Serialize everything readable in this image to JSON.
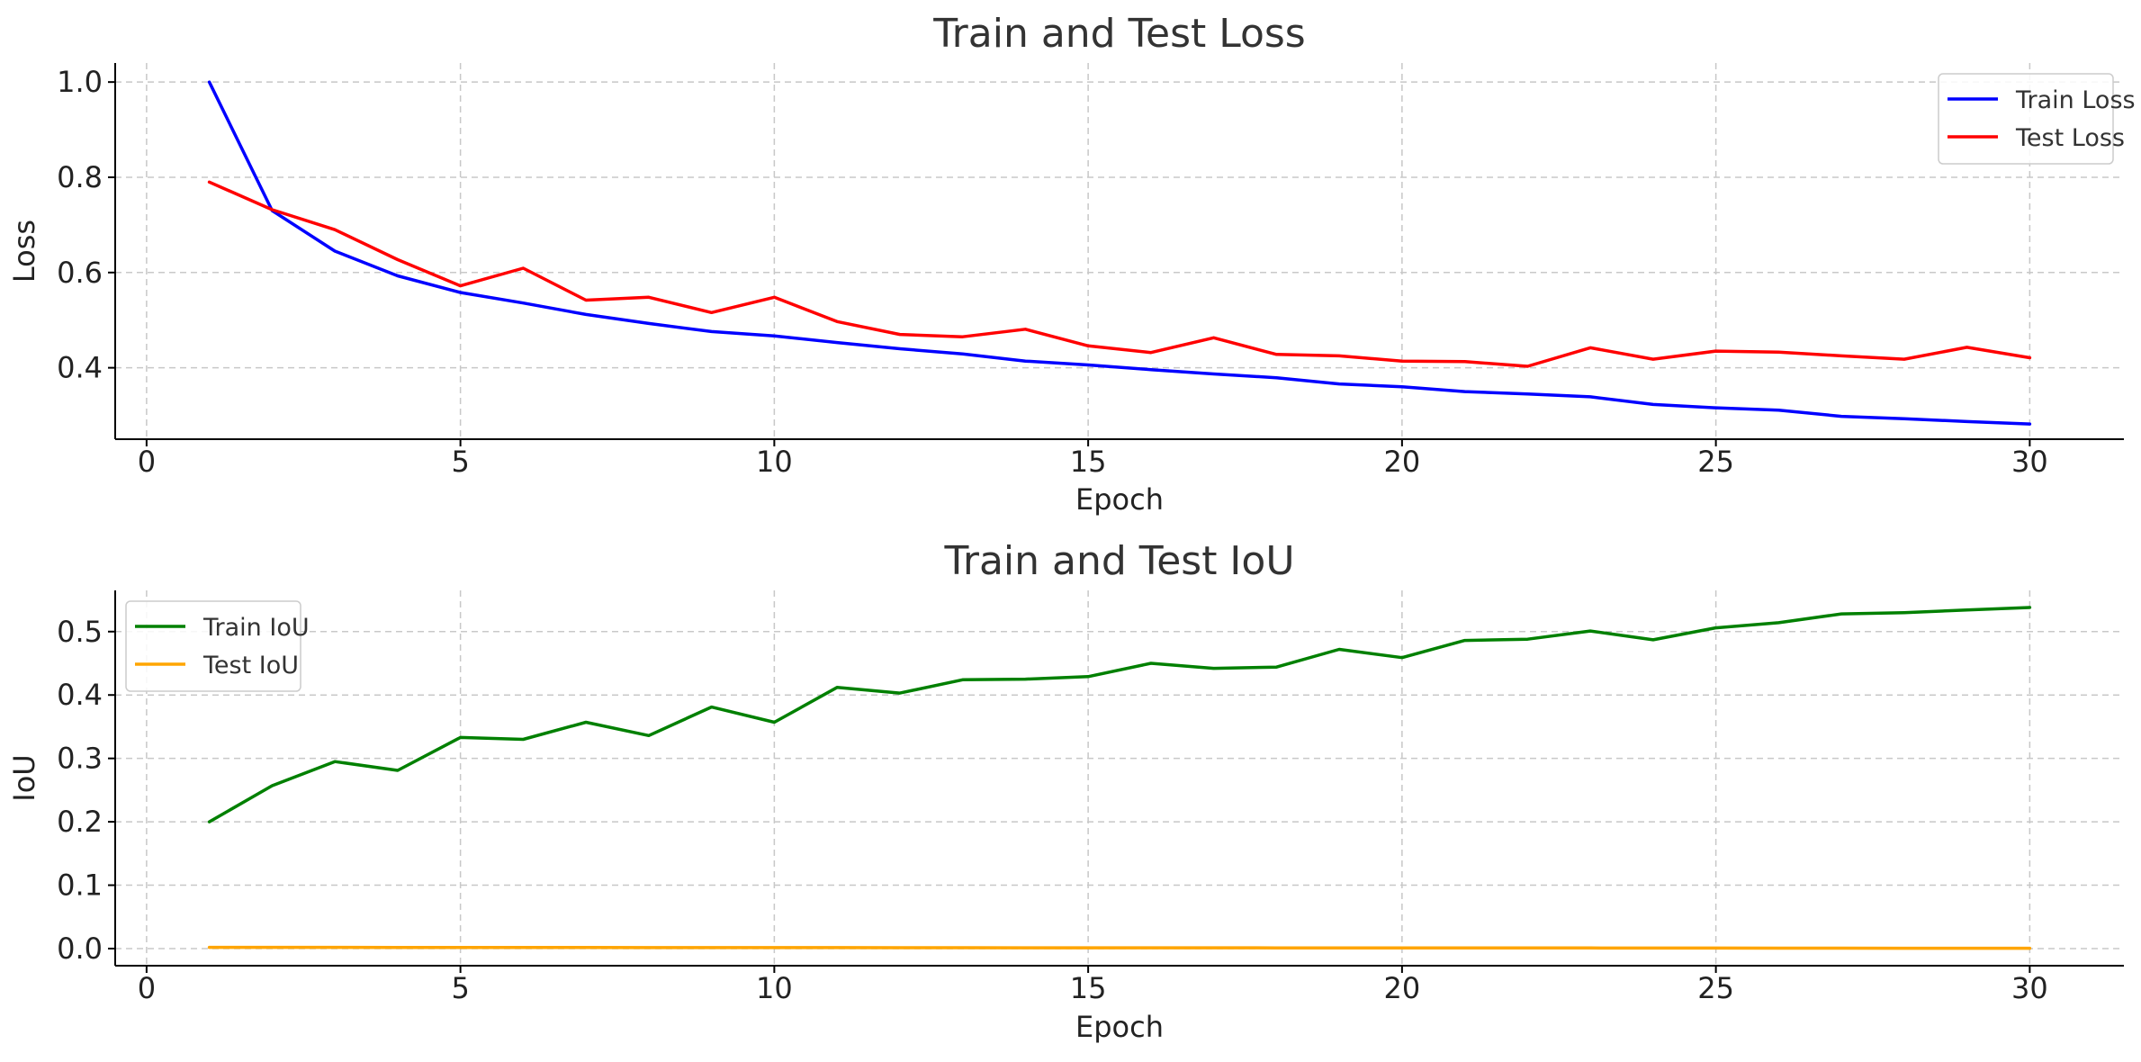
{
  "chart_data": [
    {
      "type": "line",
      "title": "Train and Test Loss",
      "xlabel": "Epoch",
      "ylabel": "Loss",
      "xlim": [
        -0.5,
        31.5
      ],
      "ylim": [
        0.25,
        1.04
      ],
      "xticks": [
        0,
        5,
        10,
        15,
        20,
        25,
        30
      ],
      "yticks": [
        0.4,
        0.6,
        0.8,
        1.0
      ],
      "xtick_labels": [
        "0",
        "5",
        "10",
        "15",
        "20",
        "25",
        "30"
      ],
      "ytick_labels": [
        "0.4",
        "0.6",
        "0.8",
        "1.0"
      ],
      "grid": true,
      "legend_position": "top-right",
      "x": [
        1,
        2,
        3,
        4,
        5,
        6,
        7,
        8,
        9,
        10,
        11,
        12,
        13,
        14,
        15,
        16,
        17,
        18,
        19,
        20,
        21,
        22,
        23,
        24,
        25,
        26,
        27,
        28,
        29,
        30
      ],
      "series": [
        {
          "name": "Train Loss",
          "color": "#0000ff",
          "values": [
            1.0,
            0.73,
            0.645,
            0.593,
            0.558,
            0.536,
            0.512,
            0.493,
            0.476,
            0.467,
            0.453,
            0.44,
            0.429,
            0.414,
            0.406,
            0.396,
            0.387,
            0.379,
            0.366,
            0.36,
            0.35,
            0.345,
            0.339,
            0.323,
            0.316,
            0.311,
            0.298,
            0.293,
            0.287,
            0.282
          ]
        },
        {
          "name": "Test Loss",
          "color": "#ff0000",
          "values": [
            0.79,
            0.732,
            0.69,
            0.627,
            0.572,
            0.609,
            0.542,
            0.548,
            0.516,
            0.548,
            0.497,
            0.47,
            0.465,
            0.481,
            0.446,
            0.432,
            0.463,
            0.428,
            0.425,
            0.414,
            0.413,
            0.403,
            0.442,
            0.418,
            0.435,
            0.433,
            0.425,
            0.418,
            0.443,
            0.421
          ]
        }
      ]
    },
    {
      "type": "line",
      "title": "Train and Test IoU",
      "xlabel": "Epoch",
      "ylabel": "IoU",
      "xlim": [
        -0.5,
        31.5
      ],
      "ylim": [
        -0.027,
        0.565
      ],
      "xticks": [
        0,
        5,
        10,
        15,
        20,
        25,
        30
      ],
      "yticks": [
        0.0,
        0.1,
        0.2,
        0.3,
        0.4,
        0.5
      ],
      "xtick_labels": [
        "0",
        "5",
        "10",
        "15",
        "20",
        "25",
        "30"
      ],
      "ytick_labels": [
        "0.0",
        "0.1",
        "0.2",
        "0.3",
        "0.4",
        "0.5"
      ],
      "grid": true,
      "legend_position": "top-left",
      "x": [
        1,
        2,
        3,
        4,
        5,
        6,
        7,
        8,
        9,
        10,
        11,
        12,
        13,
        14,
        15,
        16,
        17,
        18,
        19,
        20,
        21,
        22,
        23,
        24,
        25,
        26,
        27,
        28,
        29,
        30
      ],
      "series": [
        {
          "name": "Train IoU",
          "color": "#008000",
          "values": [
            0.2,
            0.257,
            0.295,
            0.281,
            0.333,
            0.33,
            0.357,
            0.336,
            0.381,
            0.357,
            0.412,
            0.403,
            0.424,
            0.425,
            0.429,
            0.45,
            0.442,
            0.444,
            0.472,
            0.459,
            0.486,
            0.488,
            0.501,
            0.487,
            0.506,
            0.514,
            0.528,
            0.53,
            0.534,
            0.538
          ]
        },
        {
          "name": "Test IoU",
          "color": "#ffa500",
          "values": [
            0.002,
            0.002,
            0.002,
            0.0018,
            0.0018,
            0.0017,
            0.0017,
            0.0016,
            0.0016,
            0.0015,
            0.0015,
            0.0014,
            0.0014,
            0.0013,
            0.0013,
            0.0012,
            0.0012,
            0.0011,
            0.0011,
            0.001,
            0.001,
            0.0009,
            0.0009,
            0.0008,
            0.0008,
            0.0007,
            0.0007,
            0.0006,
            0.0006,
            0.0005
          ]
        }
      ]
    }
  ]
}
